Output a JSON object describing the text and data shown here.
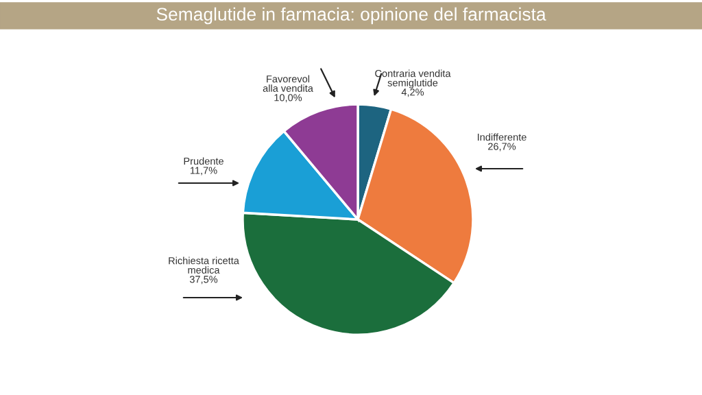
{
  "chart_data": {
    "type": "pie",
    "title": "Semaglutide in farmacia: opinione del farmacista",
    "categories": [
      "Contraria vendita\nsemiglutide",
      "Indifferente",
      "Richiesta ricetta\nmedica",
      "Prudente",
      "Favorevol\nalla vendita"
    ],
    "values": [
      4.2,
      26.7,
      37.5,
      11.7,
      10.0
    ],
    "value_labels": [
      "4,2%",
      "26,7%",
      "37,5%",
      "11,7%",
      "10,0%"
    ],
    "colors": [
      "#1d6480",
      "#ee7b3e",
      "#1b6e3c",
      "#1a9fd6",
      "#8e3b94"
    ]
  }
}
